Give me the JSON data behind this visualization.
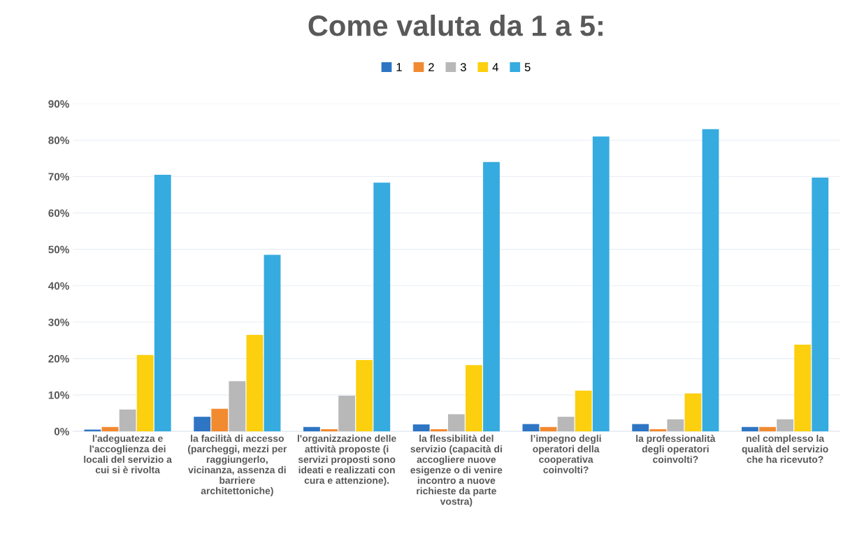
{
  "chart_data": {
    "type": "bar",
    "title": "Come valuta da 1 a 5:",
    "categories": [
      "l'adeguatezza e\nl'accoglienza dei\nlocali del servizio a\ncui si è rivolta",
      "la facilità di accesso\n(parcheggi, mezzi per\nraggiungerlo,\nvicinanza, assenza di\nbarriere\narchitettoniche)",
      "l'organizzazione delle\nattività proposte (i\nservizi proposti sono\nideati e realizzati con\ncura e attenzione).",
      "la flessibilità del\nservizio (capacità di\naccogliere nuove\nesigenze o di venire\nincontro a nuove\nrichieste da parte\nvostra)",
      "l’impegno degli\noperatori della\ncooperativa\ncoinvolti?",
      "la professionalità\ndegli operatori\ncoinvolti?",
      "nel complesso la\nqualità del servizio\nche ha ricevuto?"
    ],
    "series": [
      {
        "name": "1",
        "color": "#2e75c4",
        "values": [
          0.5,
          4,
          1.2,
          1.9,
          2,
          2,
          1.2
        ]
      },
      {
        "name": "2",
        "color": "#f28a30",
        "values": [
          1.2,
          6.2,
          0.6,
          0.6,
          1.2,
          0.6,
          1.2
        ]
      },
      {
        "name": "3",
        "color": "#b8b8b8",
        "values": [
          6,
          13.8,
          9.8,
          4.7,
          4,
          3.3,
          3.3
        ]
      },
      {
        "name": "4",
        "color": "#fccf0f",
        "values": [
          21,
          26.5,
          19.6,
          18.2,
          11.2,
          10.4,
          23.8
        ]
      },
      {
        "name": "5",
        "color": "#35abe0",
        "values": [
          70.5,
          48.5,
          68.3,
          74,
          81,
          83,
          69.7
        ]
      }
    ],
    "ylim": [
      0,
      90
    ],
    "yticks": [
      {
        "value": 0,
        "label": "0%"
      },
      {
        "value": 10,
        "label": "10%"
      },
      {
        "value": 20,
        "label": "20%"
      },
      {
        "value": 30,
        "label": "30%"
      },
      {
        "value": 40,
        "label": "40%"
      },
      {
        "value": 50,
        "label": "50%"
      },
      {
        "value": 60,
        "label": "60%"
      },
      {
        "value": 70,
        "label": "70%"
      },
      {
        "value": 80,
        "label": "80%"
      },
      {
        "value": 90,
        "label": "90%"
      }
    ],
    "grid": "y",
    "legend": "top"
  }
}
